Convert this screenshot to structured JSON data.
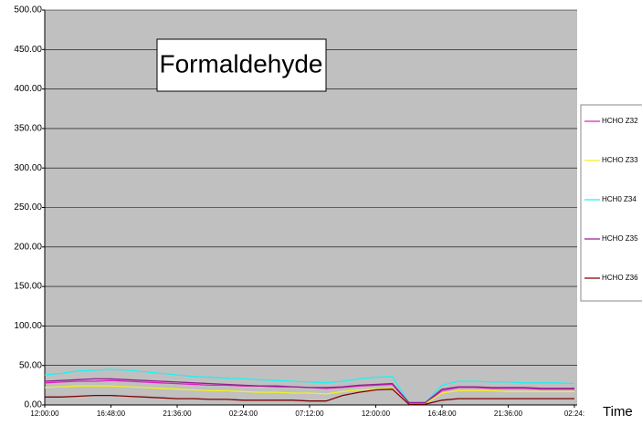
{
  "chart_data": {
    "type": "line",
    "title": "Formaldehyde",
    "x_label": "Time",
    "x": [
      0,
      1.2,
      2.4,
      3.6,
      4.8,
      6,
      7.2,
      8.4,
      9.6,
      10.8,
      12,
      13.2,
      14.4,
      15.6,
      16.8,
      18,
      19.2,
      20.4,
      21.6,
      22.8,
      24,
      25.2,
      26.4,
      27.6,
      28.8,
      30,
      31.2,
      32.4,
      33.6,
      34.8,
      36,
      37.2,
      38.4
    ],
    "xlim": [
      0,
      38.6
    ],
    "xticks": [
      {
        "value": 0,
        "label": "12:00:00"
      },
      {
        "value": 4.8,
        "label": "16:48:00"
      },
      {
        "value": 9.6,
        "label": "21:36:00"
      },
      {
        "value": 14.4,
        "label": "02:24:00"
      },
      {
        "value": 19.2,
        "label": "07:12:00"
      },
      {
        "value": 24,
        "label": "12:00:00"
      },
      {
        "value": 28.8,
        "label": "16:48:00"
      },
      {
        "value": 33.6,
        "label": "21:36:00"
      },
      {
        "value": 38.4,
        "label": "02:24:"
      }
    ],
    "ylim": [
      0,
      500
    ],
    "yticks": [
      {
        "value": 0,
        "label": "0.00"
      },
      {
        "value": 50,
        "label": "50.00"
      },
      {
        "value": 100,
        "label": "100.00"
      },
      {
        "value": 150,
        "label": "150.00"
      },
      {
        "value": 200,
        "label": "200.00"
      },
      {
        "value": 250,
        "label": "250.00"
      },
      {
        "value": 300,
        "label": "300.00"
      },
      {
        "value": 350,
        "label": "350.00"
      },
      {
        "value": 400,
        "label": "400.00"
      },
      {
        "value": 450,
        "label": "450.00"
      },
      {
        "value": 500,
        "label": "500.00"
      }
    ],
    "grid": true,
    "series": [
      {
        "name": "HCHO Z32",
        "color": "#e020c0",
        "values": [
          28,
          29,
          30,
          30,
          31,
          30,
          29,
          28,
          27,
          26,
          25,
          25,
          24,
          24,
          23,
          23,
          22,
          21,
          22,
          24,
          25,
          26,
          2,
          2,
          18,
          22,
          22,
          21,
          21,
          21,
          20,
          20,
          20
        ]
      },
      {
        "name": "HCHO Z33",
        "color": "#f0f020",
        "values": [
          22,
          23,
          24,
          24,
          24,
          23,
          22,
          21,
          20,
          19,
          18,
          18,
          17,
          16,
          16,
          15,
          15,
          14,
          17,
          19,
          20,
          21,
          2,
          2,
          15,
          18,
          18,
          18,
          17,
          17,
          17,
          17,
          17
        ]
      },
      {
        "name": "HCH0 Z34",
        "color": "#20f0f0",
        "values": [
          38,
          40,
          43,
          44,
          45,
          44,
          42,
          40,
          38,
          36,
          35,
          34,
          33,
          32,
          31,
          30,
          29,
          28,
          30,
          33,
          35,
          36,
          3,
          3,
          25,
          30,
          30,
          29,
          29,
          28,
          28,
          28,
          27
        ]
      },
      {
        "name": "HCHO Z35",
        "color": "#902090",
        "values": [
          30,
          31,
          32,
          33,
          33,
          32,
          31,
          30,
          29,
          28,
          27,
          26,
          25,
          24,
          24,
          23,
          22,
          22,
          23,
          25,
          26,
          27,
          3,
          3,
          20,
          23,
          23,
          22,
          22,
          22,
          21,
          21,
          21
        ]
      },
      {
        "name": "HCHO Z36",
        "color": "#800000",
        "values": [
          10,
          10,
          11,
          12,
          12,
          11,
          10,
          9,
          8,
          8,
          7,
          7,
          6,
          6,
          6,
          6,
          5,
          5,
          12,
          16,
          19,
          20,
          1,
          1,
          6,
          8,
          8,
          8,
          8,
          8,
          8,
          8,
          8
        ]
      }
    ]
  }
}
